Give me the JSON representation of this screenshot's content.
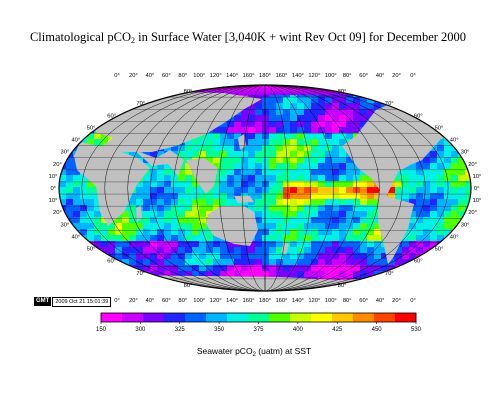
{
  "title": {
    "pre": "Climatological pCO",
    "sub": "2",
    "post": " in Surface Water [3,040K + wint Rev Oct 09] for December 2000"
  },
  "lon_labels": [
    "0°",
    "20°",
    "40°",
    "60°",
    "80°",
    "100°",
    "120°",
    "140°",
    "160°",
    "180°",
    "160°",
    "140°",
    "120°",
    "100°",
    "80°",
    "60°",
    "40°",
    "20°",
    "0°"
  ],
  "lat_labels_left": [
    "80°",
    "70°",
    "60°",
    "50°",
    "40°",
    "30°",
    "20°",
    "10°",
    "0°",
    "10°",
    "20°",
    "30°",
    "40°",
    "50°",
    "60°",
    "70°",
    "80°"
  ],
  "lat_labels_right": [
    "80°",
    "70°",
    "60°",
    "50°",
    "40°",
    "30°",
    "20°",
    "10°",
    "0°",
    "10°",
    "20°",
    "30°",
    "40°",
    "50°",
    "60°",
    "70°",
    "80°"
  ],
  "timestamp": {
    "logo": "GMT",
    "date": "2009 Oct 21 15:01:39"
  },
  "colorbar": {
    "ticks": [
      "150",
      "300",
      "325",
      "350",
      "375",
      "400",
      "425",
      "450",
      "530"
    ],
    "label_pre": "Seawater  pCO",
    "label_sub": "2",
    "label_post": " (uatm) at SST",
    "colors": [
      "#ff00ff",
      "#c800ff",
      "#7a00ff",
      "#2424ff",
      "#0064ff",
      "#00b4ff",
      "#00f0e6",
      "#00ff96",
      "#50ff00",
      "#c8ff00",
      "#ffff00",
      "#ffc800",
      "#ff8c00",
      "#ff4600",
      "#ff0000"
    ]
  },
  "colors": {
    "land": "#c0c0c0",
    "grid": "#000000",
    "ocean_default": "#00e8c8"
  }
}
